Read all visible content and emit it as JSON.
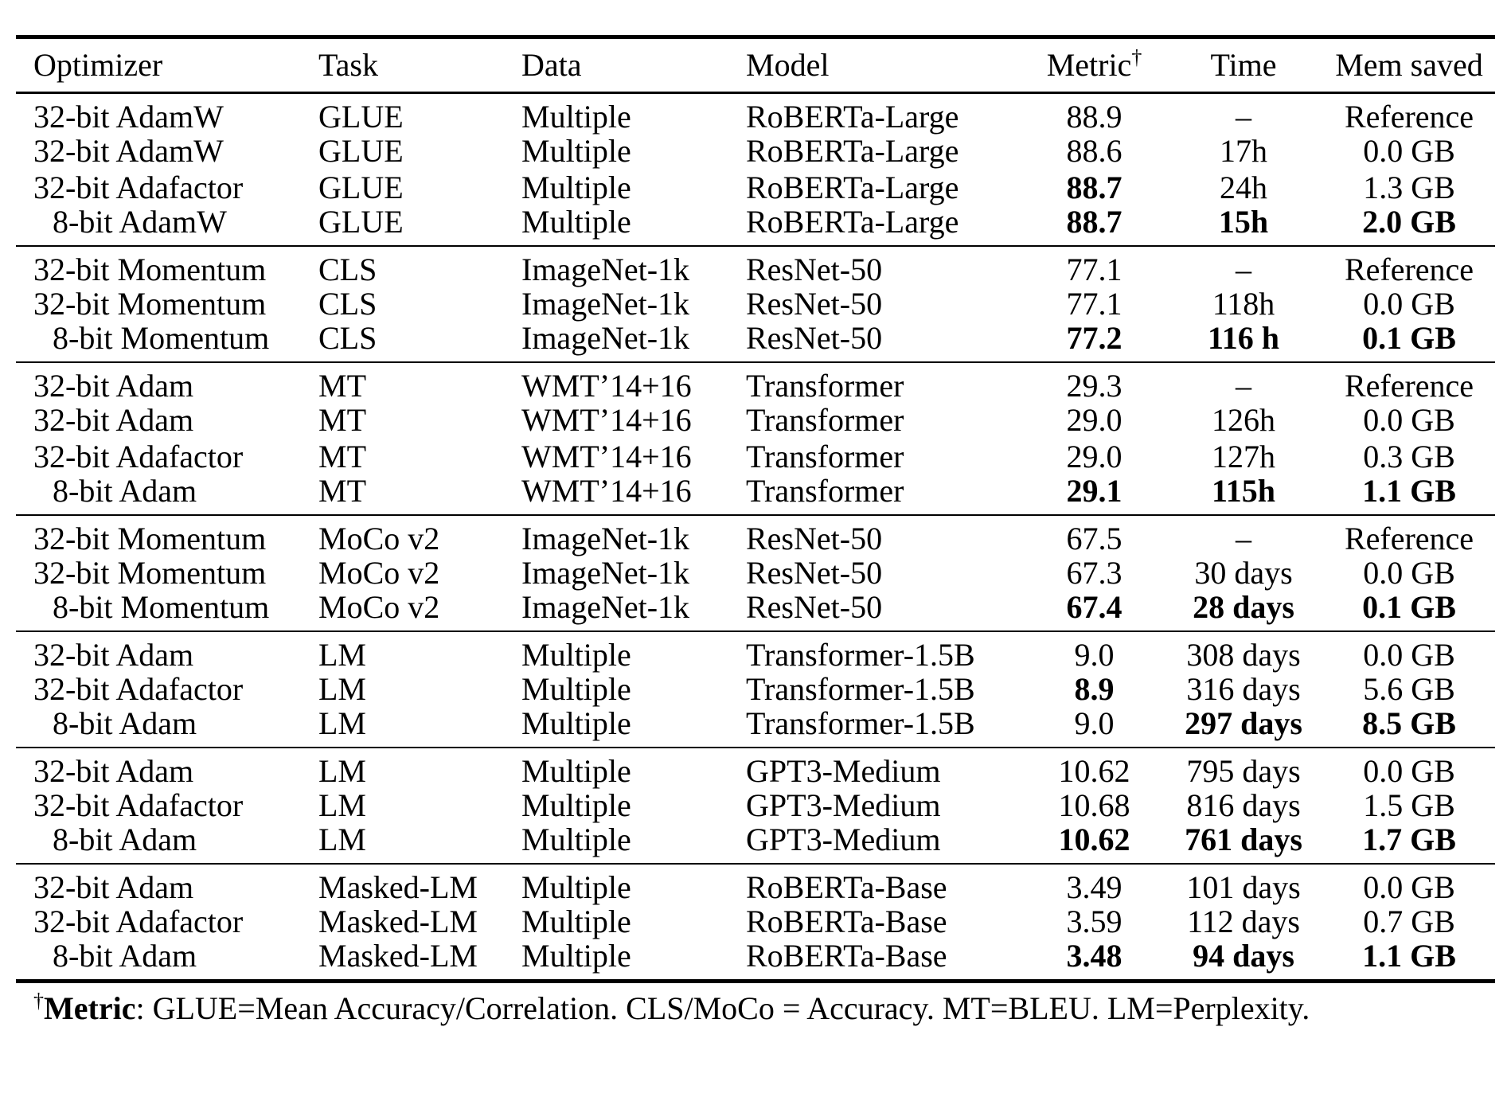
{
  "colors": {
    "background": "#ffffff",
    "text": "#000000",
    "rule": "#000000"
  },
  "table": {
    "columns": [
      {
        "key": "optimizer",
        "label": "Optimizer"
      },
      {
        "key": "task",
        "label": "Task"
      },
      {
        "key": "data",
        "label": "Data"
      },
      {
        "key": "model",
        "label": "Model"
      },
      {
        "key": "metric",
        "label": "Metric",
        "superscript": "†"
      },
      {
        "key": "time",
        "label": "Time"
      },
      {
        "key": "mem",
        "label": "Mem saved"
      }
    ],
    "groups": [
      {
        "rows": [
          {
            "optimizer": {
              "t": "32-bit AdamW"
            },
            "task": {
              "t": "GLUE"
            },
            "data": {
              "t": "Multiple"
            },
            "model": {
              "t": "RoBERTa-Large"
            },
            "metric": {
              "t": "88.9"
            },
            "time": {
              "t": "–"
            },
            "mem": {
              "t": "Reference"
            }
          },
          {
            "optimizer": {
              "t": "32-bit AdamW"
            },
            "task": {
              "t": "GLUE"
            },
            "data": {
              "t": "Multiple"
            },
            "model": {
              "t": "RoBERTa-Large"
            },
            "metric": {
              "t": "88.6"
            },
            "time": {
              "t": "17h"
            },
            "mem": {
              "t": "0.0 GB"
            }
          },
          {
            "optimizer": {
              "t": "32-bit Adafactor"
            },
            "task": {
              "t": "GLUE"
            },
            "data": {
              "t": "Multiple"
            },
            "model": {
              "t": "RoBERTa-Large"
            },
            "metric": {
              "t": "88.7",
              "b": true
            },
            "time": {
              "t": "24h"
            },
            "mem": {
              "t": "1.3 GB"
            }
          },
          {
            "indent": true,
            "optimizer": {
              "t": "8-bit AdamW"
            },
            "task": {
              "t": "GLUE"
            },
            "data": {
              "t": "Multiple"
            },
            "model": {
              "t": "RoBERTa-Large"
            },
            "metric": {
              "t": "88.7",
              "b": true
            },
            "time": {
              "t": "15h",
              "b": true
            },
            "mem": {
              "t": "2.0 GB",
              "b": true
            }
          }
        ]
      },
      {
        "rows": [
          {
            "optimizer": {
              "t": "32-bit Momentum"
            },
            "task": {
              "t": "CLS"
            },
            "data": {
              "t": "ImageNet-1k"
            },
            "model": {
              "t": "ResNet-50"
            },
            "metric": {
              "t": "77.1"
            },
            "time": {
              "t": "–"
            },
            "mem": {
              "t": "Reference"
            }
          },
          {
            "optimizer": {
              "t": "32-bit Momentum"
            },
            "task": {
              "t": "CLS"
            },
            "data": {
              "t": "ImageNet-1k"
            },
            "model": {
              "t": "ResNet-50"
            },
            "metric": {
              "t": "77.1"
            },
            "time": {
              "t": "118h"
            },
            "mem": {
              "t": "0.0 GB"
            }
          },
          {
            "indent": true,
            "optimizer": {
              "t": "8-bit Momentum"
            },
            "task": {
              "t": "CLS"
            },
            "data": {
              "t": "ImageNet-1k"
            },
            "model": {
              "t": "ResNet-50"
            },
            "metric": {
              "t": "77.2",
              "b": true
            },
            "time": {
              "t": "116 h",
              "b": true
            },
            "mem": {
              "t": "0.1 GB",
              "b": true
            }
          }
        ]
      },
      {
        "rows": [
          {
            "optimizer": {
              "t": "32-bit Adam"
            },
            "task": {
              "t": "MT"
            },
            "data": {
              "t": "WMT’14+16"
            },
            "model": {
              "t": "Transformer"
            },
            "metric": {
              "t": "29.3"
            },
            "time": {
              "t": "–"
            },
            "mem": {
              "t": "Reference"
            }
          },
          {
            "optimizer": {
              "t": "32-bit Adam"
            },
            "task": {
              "t": "MT"
            },
            "data": {
              "t": "WMT’14+16"
            },
            "model": {
              "t": "Transformer"
            },
            "metric": {
              "t": "29.0"
            },
            "time": {
              "t": "126h"
            },
            "mem": {
              "t": "0.0 GB"
            }
          },
          {
            "optimizer": {
              "t": "32-bit Adafactor"
            },
            "task": {
              "t": "MT"
            },
            "data": {
              "t": "WMT’14+16"
            },
            "model": {
              "t": "Transformer"
            },
            "metric": {
              "t": "29.0"
            },
            "time": {
              "t": "127h"
            },
            "mem": {
              "t": "0.3 GB"
            }
          },
          {
            "indent": true,
            "optimizer": {
              "t": "8-bit Adam"
            },
            "task": {
              "t": "MT"
            },
            "data": {
              "t": "WMT’14+16"
            },
            "model": {
              "t": "Transformer"
            },
            "metric": {
              "t": "29.1",
              "b": true
            },
            "time": {
              "t": "115h",
              "b": true
            },
            "mem": {
              "t": "1.1 GB",
              "b": true
            }
          }
        ]
      },
      {
        "rows": [
          {
            "optimizer": {
              "t": "32-bit Momentum"
            },
            "task": {
              "t": "MoCo v2"
            },
            "data": {
              "t": "ImageNet-1k"
            },
            "model": {
              "t": "ResNet-50"
            },
            "metric": {
              "t": "67.5"
            },
            "time": {
              "t": "–"
            },
            "mem": {
              "t": "Reference"
            }
          },
          {
            "optimizer": {
              "t": "32-bit Momentum"
            },
            "task": {
              "t": "MoCo v2"
            },
            "data": {
              "t": "ImageNet-1k"
            },
            "model": {
              "t": "ResNet-50"
            },
            "metric": {
              "t": "67.3"
            },
            "time": {
              "t": "30 days"
            },
            "mem": {
              "t": "0.0 GB"
            }
          },
          {
            "indent": true,
            "optimizer": {
              "t": "8-bit Momentum"
            },
            "task": {
              "t": "MoCo v2"
            },
            "data": {
              "t": "ImageNet-1k"
            },
            "model": {
              "t": "ResNet-50"
            },
            "metric": {
              "t": "67.4",
              "b": true
            },
            "time": {
              "t": "28 days",
              "b": true
            },
            "mem": {
              "t": "0.1 GB",
              "b": true
            }
          }
        ]
      },
      {
        "rows": [
          {
            "optimizer": {
              "t": "32-bit Adam"
            },
            "task": {
              "t": "LM"
            },
            "data": {
              "t": "Multiple"
            },
            "model": {
              "t": "Transformer-1.5B"
            },
            "metric": {
              "t": "9.0"
            },
            "time": {
              "t": "308 days"
            },
            "mem": {
              "t": "0.0 GB"
            }
          },
          {
            "optimizer": {
              "t": "32-bit Adafactor"
            },
            "task": {
              "t": "LM"
            },
            "data": {
              "t": "Multiple"
            },
            "model": {
              "t": "Transformer-1.5B"
            },
            "metric": {
              "t": "8.9",
              "b": true
            },
            "time": {
              "t": "316 days"
            },
            "mem": {
              "t": "5.6 GB"
            }
          },
          {
            "indent": true,
            "optimizer": {
              "t": "8-bit Adam"
            },
            "task": {
              "t": "LM"
            },
            "data": {
              "t": "Multiple"
            },
            "model": {
              "t": "Transformer-1.5B"
            },
            "metric": {
              "t": "9.0"
            },
            "time": {
              "t": "297 days",
              "b": true
            },
            "mem": {
              "t": "8.5 GB",
              "b": true
            }
          }
        ]
      },
      {
        "rows": [
          {
            "optimizer": {
              "t": "32-bit Adam"
            },
            "task": {
              "t": "LM"
            },
            "data": {
              "t": "Multiple"
            },
            "model": {
              "t": "GPT3-Medium"
            },
            "metric": {
              "t": "10.62"
            },
            "time": {
              "t": "795 days"
            },
            "mem": {
              "t": "0.0 GB"
            }
          },
          {
            "optimizer": {
              "t": "32-bit Adafactor"
            },
            "task": {
              "t": "LM"
            },
            "data": {
              "t": "Multiple"
            },
            "model": {
              "t": "GPT3-Medium"
            },
            "metric": {
              "t": "10.68"
            },
            "time": {
              "t": "816 days"
            },
            "mem": {
              "t": "1.5 GB"
            }
          },
          {
            "indent": true,
            "optimizer": {
              "t": "8-bit Adam"
            },
            "task": {
              "t": "LM"
            },
            "data": {
              "t": "Multiple"
            },
            "model": {
              "t": "GPT3-Medium"
            },
            "metric": {
              "t": "10.62",
              "b": true
            },
            "time": {
              "t": "761 days",
              "b": true
            },
            "mem": {
              "t": "1.7 GB",
              "b": true
            }
          }
        ]
      },
      {
        "rows": [
          {
            "optimizer": {
              "t": "32-bit Adam"
            },
            "task": {
              "t": "Masked-LM"
            },
            "data": {
              "t": "Multiple"
            },
            "model": {
              "t": "RoBERTa-Base"
            },
            "metric": {
              "t": "3.49"
            },
            "time": {
              "t": "101 days"
            },
            "mem": {
              "t": "0.0 GB"
            }
          },
          {
            "optimizer": {
              "t": "32-bit Adafactor"
            },
            "task": {
              "t": "Masked-LM"
            },
            "data": {
              "t": "Multiple"
            },
            "model": {
              "t": "RoBERTa-Base"
            },
            "metric": {
              "t": "3.59"
            },
            "time": {
              "t": "112 days"
            },
            "mem": {
              "t": "0.7 GB"
            }
          },
          {
            "indent": true,
            "optimizer": {
              "t": "8-bit Adam"
            },
            "task": {
              "t": "Masked-LM"
            },
            "data": {
              "t": "Multiple"
            },
            "model": {
              "t": "RoBERTa-Base"
            },
            "metric": {
              "t": "3.48",
              "b": true
            },
            "time": {
              "t": "94 days",
              "b": true
            },
            "mem": {
              "t": "1.1 GB",
              "b": true
            }
          }
        ]
      }
    ]
  },
  "footnote": {
    "dagger": "†",
    "label": "Metric",
    "text": ": GLUE=Mean Accuracy/Correlation. CLS/MoCo = Accuracy. MT=BLEU. LM=Perplexity."
  }
}
